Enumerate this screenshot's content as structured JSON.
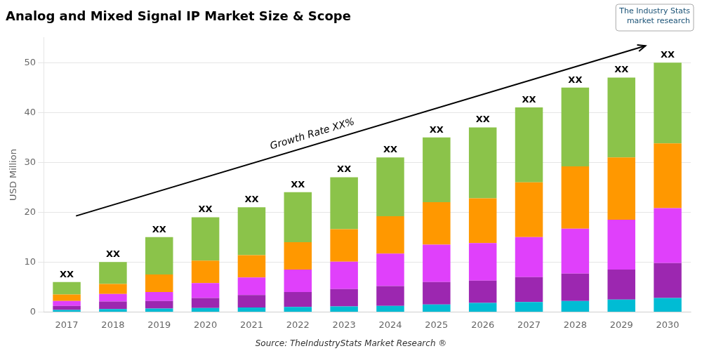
{
  "chart_data": {
    "type": "bar",
    "title": "Analog and Mixed Signal IP Market Size & Scope",
    "ylabel": "USD Million",
    "categories": [
      2017,
      2018,
      2019,
      2020,
      2021,
      2022,
      2023,
      2024,
      2025,
      2026,
      2027,
      2028,
      2029,
      2030
    ],
    "series": [
      {
        "color": "#00bcd4",
        "values": [
          0.4,
          0.6,
          0.7,
          0.8,
          0.9,
          1.0,
          1.1,
          1.2,
          1.5,
          1.8,
          2.0,
          2.2,
          2.5,
          2.8
        ]
      },
      {
        "color": "#9c27b0",
        "values": [
          0.8,
          1.5,
          1.5,
          2.0,
          2.5,
          3.0,
          3.5,
          4.0,
          4.5,
          4.5,
          5.0,
          5.5,
          6.0,
          7.0
        ]
      },
      {
        "color": "#e040fb",
        "values": [
          1.0,
          1.5,
          1.8,
          3.0,
          3.5,
          4.5,
          5.5,
          6.5,
          7.5,
          7.5,
          8.0,
          9.0,
          10.0,
          11.0
        ]
      },
      {
        "color": "#ff9800",
        "values": [
          1.3,
          2.0,
          3.5,
          4.5,
          4.5,
          5.5,
          6.5,
          7.5,
          8.5,
          9.0,
          11.0,
          12.5,
          12.5,
          13.0
        ]
      },
      {
        "color": "#8bc34a",
        "values": [
          2.5,
          4.4,
          7.5,
          8.7,
          9.6,
          10.0,
          10.4,
          11.8,
          13.0,
          14.2,
          15.0,
          15.8,
          16.0,
          16.2
        ]
      }
    ],
    "stacked": true,
    "bar_labels": [
      "XX",
      "XX",
      "XX",
      "XX",
      "XX",
      "XX",
      "XX",
      "XX",
      "XX",
      "XX",
      "XX",
      "XX",
      "XX",
      "XX"
    ],
    "annotations": [
      "Growth Rate XX%",
      "Source: TheIndustryStats Market Research ®",
      "The Industry Stats\nmarket research"
    ],
    "ylim": [
      0,
      55
    ],
    "yticks": [
      0,
      10,
      20,
      30,
      40,
      50
    ],
    "grid": true
  }
}
